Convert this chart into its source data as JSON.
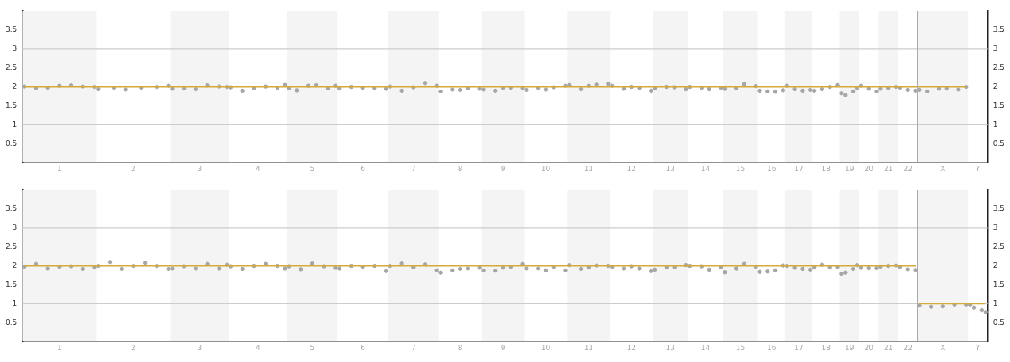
{
  "chart_data": [
    {
      "type": "scatter",
      "grid": false,
      "legend": false,
      "ylim": [
        0,
        4
      ],
      "y2lim": [
        0,
        4
      ],
      "yticks": [
        0.5,
        1,
        1.5,
        2,
        2.5,
        3,
        3.5
      ],
      "y2ticks": [
        0.5,
        1,
        1.5,
        2,
        2.5,
        3,
        3.5
      ],
      "categories": [
        null,
        null,
        null,
        null,
        null,
        null,
        null,
        null,
        null,
        "1",
        null,
        null,
        null,
        null,
        null,
        null,
        null,
        null,
        null,
        null,
        null,
        null,
        null,
        null,
        null,
        null,
        null,
        null,
        "2",
        null,
        null,
        null,
        null,
        null,
        null,
        null,
        null,
        null,
        null,
        null,
        null,
        null,
        null,
        null,
        null,
        "3",
        null,
        null,
        null,
        null,
        null,
        null,
        null,
        null,
        null,
        null,
        null,
        null,
        null,
        null,
        "4",
        null,
        null,
        null,
        null,
        null,
        null,
        null,
        null,
        null,
        null,
        null,
        null,
        null,
        "5",
        null,
        null,
        null,
        null,
        null,
        null,
        null,
        null,
        null,
        null,
        null,
        null,
        "6",
        null,
        null,
        null,
        null,
        null,
        null,
        null,
        null,
        null,
        null,
        null,
        null,
        "7",
        null,
        null,
        null,
        null,
        null,
        null,
        null,
        null,
        null,
        null,
        null,
        "8",
        null,
        null,
        null,
        null,
        null,
        null,
        null,
        null,
        null,
        null,
        "9",
        null,
        null,
        null,
        null,
        null,
        null,
        null,
        null,
        null,
        null,
        "10",
        null,
        null,
        null,
        null,
        null,
        null,
        null,
        null,
        null,
        null,
        "11",
        null,
        null,
        null,
        null,
        null,
        null,
        null,
        null,
        null,
        null,
        "12",
        null,
        null,
        null,
        null,
        null,
        null,
        null,
        null,
        null,
        "13",
        null,
        null,
        null,
        null,
        null,
        null,
        null,
        null,
        "14",
        null,
        null,
        null,
        null,
        null,
        null,
        null,
        null,
        "15",
        null,
        null,
        null,
        null,
        null,
        null,
        null,
        "16",
        null,
        null,
        null,
        null,
        null,
        null,
        "17",
        null,
        null,
        null,
        null,
        null,
        null,
        "18",
        null,
        null,
        null,
        null,
        null,
        "19",
        null,
        null,
        null,
        null,
        "20",
        null,
        null,
        null,
        null,
        "21",
        null,
        null,
        null,
        null,
        "22",
        null,
        null,
        null,
        null,
        null,
        null,
        null,
        null,
        "X",
        null,
        null,
        null,
        null,
        null,
        null,
        null,
        null,
        "Y",
        null,
        null
      ],
      "ref_lines": [
        {
          "axis": "y",
          "value": 1,
          "color": "#cccccc"
        },
        {
          "axis": "y",
          "value": 3,
          "color": "#cccccc"
        }
      ],
      "series": [
        {
          "type": "scatter",
          "color": "#a6a6a6",
          "values": [
            2.01,
            null,
            null,
            1.97,
            null,
            null,
            1.98,
            null,
            null,
            2.03,
            null,
            null,
            2.04,
            null,
            null,
            2.01,
            null,
            null,
            2.0,
            1.94,
            null,
            null,
            null,
            1.98,
            null,
            null,
            1.93,
            null,
            null,
            null,
            1.98,
            null,
            null,
            null,
            2.0,
            null,
            null,
            2.03,
            1.95,
            null,
            null,
            1.96,
            null,
            null,
            1.94,
            null,
            null,
            2.04,
            null,
            null,
            2.01,
            null,
            2.0,
            1.99,
            null,
            null,
            1.9,
            null,
            null,
            1.97,
            null,
            null,
            2.01,
            null,
            null,
            1.98,
            null,
            2.05,
            1.96,
            null,
            1.91,
            null,
            null,
            2.03,
            null,
            2.04,
            null,
            null,
            1.97,
            null,
            2.03,
            1.96,
            null,
            null,
            2.0,
            null,
            null,
            1.98,
            null,
            null,
            1.97,
            null,
            null,
            1.95,
            2.01,
            null,
            null,
            1.9,
            null,
            null,
            1.99,
            null,
            null,
            2.1,
            null,
            null,
            2.03,
            1.88,
            null,
            null,
            1.93,
            null,
            1.92,
            null,
            1.96,
            null,
            null,
            1.95,
            1.93,
            null,
            null,
            1.9,
            null,
            1.97,
            null,
            1.98,
            null,
            null,
            1.97,
            1.92,
            null,
            null,
            1.97,
            null,
            1.93,
            null,
            1.99,
            null,
            null,
            2.03,
            2.05,
            null,
            null,
            1.94,
            null,
            2.03,
            null,
            2.06,
            null,
            null,
            2.08,
            2.03,
            null,
            null,
            1.95,
            null,
            2.0,
            null,
            1.97,
            null,
            null,
            1.9,
            1.96,
            null,
            null,
            2.0,
            null,
            1.99,
            null,
            null,
            1.94,
            2.0,
            null,
            null,
            1.98,
            null,
            1.94,
            null,
            null,
            1.98,
            1.95,
            null,
            null,
            1.97,
            null,
            2.07,
            null,
            null,
            2.02,
            1.9,
            null,
            1.88,
            null,
            1.87,
            null,
            1.91,
            2.03,
            null,
            1.94,
            null,
            1.9,
            null,
            1.92,
            1.9,
            null,
            1.94,
            null,
            2.0,
            null,
            2.05,
            1.83,
            1.78,
            null,
            1.88,
            1.97,
            2.03,
            null,
            1.95,
            null,
            1.88,
            1.95,
            null,
            1.97,
            null,
            2.0,
            1.98,
            null,
            1.92,
            null,
            1.9,
            1.92,
            null,
            1.88,
            null,
            null,
            1.95,
            null,
            1.96,
            null,
            null,
            1.93,
            null,
            2.0,
            null,
            null,
            null,
            null,
            null
          ]
        },
        {
          "type": "line",
          "color": "#d4aa3a",
          "values": [
            2,
            null,
            null,
            null,
            null,
            null,
            null,
            null,
            null,
            null,
            null,
            null,
            null,
            null,
            null,
            null,
            null,
            null,
            null,
            null,
            null,
            null,
            null,
            null,
            null,
            null,
            null,
            null,
            null,
            null,
            null,
            null,
            null,
            null,
            null,
            null,
            null,
            null,
            null,
            null,
            null,
            null,
            null,
            null,
            null,
            null,
            null,
            null,
            null,
            null,
            null,
            null,
            null,
            null,
            null,
            null,
            null,
            null,
            null,
            null,
            null,
            null,
            null,
            null,
            null,
            null,
            null,
            null,
            null,
            null,
            null,
            null,
            null,
            null,
            null,
            null,
            null,
            null,
            null,
            null,
            null,
            null,
            null,
            null,
            null,
            null,
            null,
            null,
            null,
            null,
            null,
            null,
            null,
            null,
            null,
            null,
            null,
            null,
            null,
            null,
            null,
            null,
            null,
            null,
            null,
            null,
            null,
            null,
            null,
            null,
            null,
            null,
            null,
            null,
            null,
            null,
            null,
            null,
            null,
            null,
            null,
            null,
            null,
            null,
            null,
            null,
            null,
            null,
            null,
            null,
            null,
            null,
            null,
            null,
            null,
            null,
            null,
            null,
            null,
            null,
            null,
            null,
            null,
            null,
            null,
            null,
            null,
            null,
            null,
            null,
            null,
            null,
            null,
            null,
            null,
            null,
            null,
            null,
            null,
            null,
            null,
            null,
            null,
            null,
            null,
            null,
            null,
            null,
            null,
            null,
            null,
            null,
            null,
            null,
            null,
            null,
            null,
            null,
            null,
            null,
            null,
            null,
            null,
            null,
            null,
            null,
            null,
            null,
            null,
            null,
            null,
            null,
            null,
            null,
            null,
            null,
            null,
            null,
            null,
            null,
            null,
            null,
            null,
            null,
            null,
            null,
            null,
            null,
            null,
            null,
            null,
            null,
            null,
            null,
            null,
            null,
            null,
            null,
            null,
            null,
            null,
            null,
            null,
            null,
            null,
            null,
            null,
            null,
            null,
            null,
            null,
            null,
            null,
            null,
            null,
            null,
            null,
            null,
            null,
            null,
            null,
            null,
            2,
            null,
            null,
            null,
            null,
            null
          ]
        }
      ]
    },
    {
      "type": "scatter",
      "grid": false,
      "legend": false,
      "ylim": [
        0,
        4
      ],
      "y2lim": [
        0,
        4
      ],
      "yticks": [
        0.5,
        1,
        1.5,
        2,
        2.5,
        3,
        3.5
      ],
      "y2ticks": [
        0.5,
        1,
        1.5,
        2,
        2.5,
        3,
        3.5
      ],
      "categories": [
        null,
        null,
        null,
        null,
        null,
        null,
        null,
        null,
        null,
        "1",
        null,
        null,
        null,
        null,
        null,
        null,
        null,
        null,
        null,
        null,
        null,
        null,
        null,
        null,
        null,
        null,
        null,
        null,
        "2",
        null,
        null,
        null,
        null,
        null,
        null,
        null,
        null,
        null,
        null,
        null,
        null,
        null,
        null,
        null,
        null,
        "3",
        null,
        null,
        null,
        null,
        null,
        null,
        null,
        null,
        null,
        null,
        null,
        null,
        null,
        null,
        "4",
        null,
        null,
        null,
        null,
        null,
        null,
        null,
        null,
        null,
        null,
        null,
        null,
        null,
        "5",
        null,
        null,
        null,
        null,
        null,
        null,
        null,
        null,
        null,
        null,
        null,
        null,
        "6",
        null,
        null,
        null,
        null,
        null,
        null,
        null,
        null,
        null,
        null,
        null,
        null,
        "7",
        null,
        null,
        null,
        null,
        null,
        null,
        null,
        null,
        null,
        null,
        null,
        "8",
        null,
        null,
        null,
        null,
        null,
        null,
        null,
        null,
        null,
        null,
        "9",
        null,
        null,
        null,
        null,
        null,
        null,
        null,
        null,
        null,
        null,
        "10",
        null,
        null,
        null,
        null,
        null,
        null,
        null,
        null,
        null,
        null,
        "11",
        null,
        null,
        null,
        null,
        null,
        null,
        null,
        null,
        null,
        null,
        "12",
        null,
        null,
        null,
        null,
        null,
        null,
        null,
        null,
        null,
        "13",
        null,
        null,
        null,
        null,
        null,
        null,
        null,
        null,
        "14",
        null,
        null,
        null,
        null,
        null,
        null,
        null,
        null,
        "15",
        null,
        null,
        null,
        null,
        null,
        null,
        null,
        "16",
        null,
        null,
        null,
        null,
        null,
        null,
        "17",
        null,
        null,
        null,
        null,
        null,
        null,
        "18",
        null,
        null,
        null,
        null,
        null,
        "19",
        null,
        null,
        null,
        null,
        "20",
        null,
        null,
        null,
        null,
        "21",
        null,
        null,
        null,
        null,
        "22",
        null,
        null,
        null,
        null,
        null,
        null,
        null,
        null,
        "X",
        null,
        null,
        null,
        null,
        null,
        null,
        null,
        null,
        "Y",
        null,
        null
      ],
      "ref_lines": [
        {
          "axis": "y",
          "value": 1,
          "color": "#cccccc"
        },
        {
          "axis": "y",
          "value": 3,
          "color": "#cccccc"
        }
      ],
      "series": [
        {
          "type": "scatter",
          "color": "#a6a6a6",
          "values": [
            1.98,
            null,
            null,
            2.05,
            null,
            null,
            1.93,
            null,
            null,
            1.98,
            null,
            null,
            1.99,
            null,
            null,
            1.92,
            null,
            null,
            1.96,
            2.0,
            null,
            null,
            2.1,
            null,
            null,
            1.92,
            null,
            null,
            2.0,
            null,
            null,
            2.08,
            null,
            null,
            2.0,
            null,
            null,
            1.92,
            1.93,
            null,
            null,
            1.99,
            null,
            null,
            1.93,
            null,
            null,
            2.05,
            null,
            null,
            1.93,
            null,
            2.03,
            1.99,
            null,
            null,
            1.92,
            null,
            null,
            2.0,
            null,
            null,
            2.05,
            null,
            null,
            2.0,
            null,
            1.93,
            1.99,
            null,
            null,
            1.91,
            null,
            null,
            2.06,
            null,
            null,
            1.99,
            null,
            null,
            1.95,
            1.93,
            null,
            null,
            2.0,
            null,
            null,
            1.98,
            null,
            null,
            2.0,
            null,
            null,
            1.86,
            2.0,
            null,
            null,
            2.06,
            null,
            null,
            1.96,
            null,
            null,
            2.04,
            null,
            null,
            1.88,
            1.82,
            null,
            null,
            1.88,
            null,
            1.92,
            null,
            1.93,
            null,
            null,
            1.95,
            1.88,
            null,
            null,
            1.87,
            null,
            1.95,
            null,
            1.97,
            null,
            null,
            2.05,
            1.93,
            null,
            null,
            1.93,
            null,
            1.88,
            null,
            1.97,
            null,
            null,
            1.88,
            2.02,
            null,
            null,
            1.92,
            null,
            1.96,
            null,
            2.01,
            null,
            null,
            2.0,
            1.97,
            null,
            null,
            1.93,
            null,
            1.99,
            null,
            1.93,
            null,
            null,
            1.86,
            1.9,
            null,
            null,
            1.96,
            null,
            1.96,
            null,
            null,
            2.02,
            2.0,
            null,
            null,
            1.99,
            null,
            1.9,
            null,
            null,
            1.96,
            1.83,
            null,
            null,
            1.93,
            null,
            2.05,
            null,
            null,
            1.98,
            1.84,
            null,
            1.85,
            null,
            1.88,
            null,
            2.01,
            2.0,
            null,
            1.95,
            null,
            1.92,
            null,
            1.9,
            1.96,
            null,
            2.03,
            null,
            1.96,
            null,
            1.97,
            1.79,
            1.82,
            null,
            1.92,
            2.02,
            1.95,
            null,
            1.94,
            null,
            1.94,
            1.98,
            null,
            2.0,
            null,
            2.01,
            1.97,
            null,
            1.91,
            null,
            1.89,
            0.95,
            null,
            null,
            0.92,
            null,
            null,
            0.93,
            null,
            null,
            0.98,
            null,
            null,
            0.98,
            0.98,
            0.9,
            null,
            0.83,
            0.78
          ]
        },
        {
          "type": "line",
          "color": "#d4aa3a",
          "values": [
            2,
            null,
            null,
            null,
            null,
            null,
            null,
            null,
            null,
            null,
            null,
            null,
            null,
            null,
            null,
            null,
            null,
            null,
            null,
            null,
            null,
            null,
            null,
            null,
            null,
            null,
            null,
            null,
            null,
            null,
            null,
            null,
            null,
            null,
            null,
            null,
            null,
            null,
            null,
            null,
            null,
            null,
            null,
            null,
            null,
            null,
            null,
            null,
            null,
            null,
            null,
            null,
            null,
            null,
            null,
            null,
            null,
            null,
            null,
            null,
            null,
            null,
            null,
            null,
            null,
            null,
            null,
            null,
            null,
            null,
            null,
            null,
            null,
            null,
            null,
            null,
            null,
            null,
            null,
            null,
            null,
            null,
            null,
            null,
            null,
            null,
            null,
            null,
            null,
            null,
            null,
            null,
            null,
            null,
            null,
            null,
            null,
            null,
            null,
            null,
            null,
            null,
            null,
            null,
            null,
            null,
            null,
            null,
            null,
            null,
            null,
            null,
            null,
            null,
            null,
            null,
            null,
            null,
            null,
            null,
            null,
            null,
            null,
            null,
            null,
            null,
            null,
            null,
            null,
            null,
            null,
            null,
            null,
            null,
            null,
            null,
            null,
            null,
            null,
            null,
            null,
            null,
            null,
            null,
            null,
            null,
            null,
            null,
            null,
            null,
            null,
            null,
            null,
            null,
            null,
            null,
            null,
            null,
            null,
            null,
            null,
            null,
            null,
            null,
            null,
            null,
            null,
            null,
            null,
            null,
            null,
            null,
            null,
            null,
            null,
            null,
            null,
            null,
            null,
            null,
            null,
            null,
            null,
            null,
            null,
            null,
            null,
            null,
            null,
            null,
            null,
            null,
            null,
            null,
            null,
            null,
            null,
            null,
            null,
            null,
            null,
            null,
            null,
            null,
            null,
            null,
            null,
            null,
            null,
            null,
            null,
            null,
            null,
            null,
            null,
            null,
            null,
            null,
            null,
            null,
            null,
            null,
            null,
            null,
            null,
            null,
            null,
            null,
            null,
            2,
            null,
            null,
            null,
            null,
            null,
            null,
            null,
            null,
            null,
            null,
            null,
            null,
            null,
            null,
            null,
            null,
            null,
            null
          ]
        },
        {
          "type": "line",
          "color": "#d4aa3a",
          "values": [
            null,
            null,
            null,
            null,
            null,
            null,
            null,
            null,
            null,
            null,
            null,
            null,
            null,
            null,
            null,
            null,
            null,
            null,
            null,
            null,
            null,
            null,
            null,
            null,
            null,
            null,
            null,
            null,
            null,
            null,
            null,
            null,
            null,
            null,
            null,
            null,
            null,
            null,
            null,
            null,
            null,
            null,
            null,
            null,
            null,
            null,
            null,
            null,
            null,
            null,
            null,
            null,
            null,
            null,
            null,
            null,
            null,
            null,
            null,
            null,
            null,
            null,
            null,
            null,
            null,
            null,
            null,
            null,
            null,
            null,
            null,
            null,
            null,
            null,
            null,
            null,
            null,
            null,
            null,
            null,
            null,
            null,
            null,
            null,
            null,
            null,
            null,
            null,
            null,
            null,
            null,
            null,
            null,
            null,
            null,
            null,
            null,
            null,
            null,
            null,
            null,
            null,
            null,
            null,
            null,
            null,
            null,
            null,
            null,
            null,
            null,
            null,
            null,
            null,
            null,
            null,
            null,
            null,
            null,
            null,
            null,
            null,
            null,
            null,
            null,
            null,
            null,
            null,
            null,
            null,
            null,
            null,
            null,
            null,
            null,
            null,
            null,
            null,
            null,
            null,
            null,
            null,
            null,
            null,
            null,
            null,
            null,
            null,
            null,
            null,
            null,
            null,
            null,
            null,
            null,
            null,
            null,
            null,
            null,
            null,
            null,
            null,
            null,
            null,
            null,
            null,
            null,
            null,
            null,
            null,
            null,
            null,
            null,
            null,
            null,
            null,
            null,
            null,
            null,
            null,
            null,
            null,
            null,
            null,
            null,
            null,
            null,
            null,
            null,
            null,
            null,
            null,
            null,
            null,
            null,
            null,
            null,
            null,
            null,
            null,
            null,
            null,
            null,
            null,
            null,
            null,
            null,
            null,
            null,
            null,
            null,
            null,
            null,
            null,
            null,
            null,
            null,
            null,
            null,
            null,
            null,
            null,
            null,
            null,
            null,
            null,
            null,
            null,
            null,
            null,
            1,
            null,
            null,
            null,
            null,
            null,
            null,
            null,
            null,
            null,
            null,
            null,
            null,
            null,
            null,
            null,
            null,
            1
          ]
        }
      ]
    }
  ]
}
